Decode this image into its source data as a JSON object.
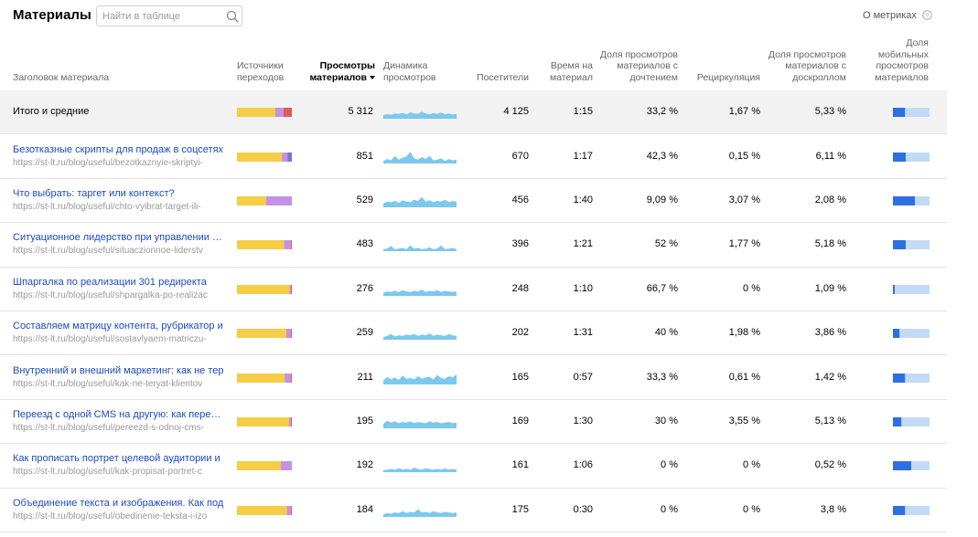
{
  "header": {
    "title": "Материалы",
    "search_placeholder": "Найти в таблице",
    "about": "О метриках"
  },
  "table": {
    "columns": [
      "Заголовок материала",
      "Источники переходов",
      "Просмотры материалов",
      "Динамика просмотров",
      "Посетители",
      "Время на материал",
      "Доля просмотров материалов с дочтением",
      "Рециркуляция",
      "Доля просмотров материалов с доскроллом",
      "Доля мобильных просмотров материалов"
    ],
    "source_colors": [
      "#f5cd46",
      "#c391e6",
      "#e05a5a",
      "#6d78d6"
    ],
    "dynamics_color": "#7cc8ee",
    "mobile_colors": [
      "#2f6fe4",
      "#c3daf7"
    ],
    "rows": [
      {
        "title": "Итого и средние",
        "views": "5 312",
        "visitors": "4 125",
        "time": "1:15",
        "read_share": "33,2 %",
        "recirculation": "1,67 %",
        "scroll_share": "5,33 %",
        "sources": [
          70,
          15,
          15,
          0
        ],
        "mobile_share": 33,
        "dynamics": [
          30,
          35,
          32,
          40,
          38,
          45,
          36,
          50,
          42,
          38,
          55,
          40,
          36,
          44,
          38,
          48,
          35,
          40,
          33,
          38
        ]
      },
      {
        "title": "Безотказные скрипты для продаж в соцсетях",
        "url": "https://st-lt.ru/blog/useful/bezotkaznyie-skriptyi-",
        "views": "851",
        "visitors": "670",
        "time": "1:17",
        "read_share": "42,3 %",
        "recirculation": "0,15 %",
        "scroll_share": "6,11 %",
        "sources": [
          82,
          10,
          0,
          8
        ],
        "mobile_share": 35,
        "dynamics": [
          20,
          35,
          25,
          60,
          30,
          45,
          55,
          90,
          40,
          30,
          50,
          35,
          60,
          25,
          30,
          40,
          20,
          35,
          25,
          30
        ]
      },
      {
        "title": "Что выбрать: таргет или контекст?",
        "url": "https://st-lt.ru/blog/useful/chto-vyibrat-target-ili-",
        "views": "529",
        "visitors": "456",
        "time": "1:40",
        "read_share": "9,09 %",
        "recirculation": "3,07 %",
        "scroll_share": "2,08 %",
        "sources": [
          53,
          47,
          0,
          0
        ],
        "mobile_share": 60,
        "dynamics": [
          30,
          45,
          40,
          50,
          35,
          55,
          45,
          40,
          60,
          50,
          80,
          45,
          55,
          40,
          50,
          45,
          60,
          40,
          50,
          45
        ]
      },
      {
        "title": "Ситуационное лидерство при управлении лю",
        "url": "https://st-lt.ru/blog/useful/situaczionnoe-liderstv",
        "views": "483",
        "visitors": "396",
        "time": "1:21",
        "read_share": "52 %",
        "recirculation": "1,77 %",
        "scroll_share": "5,18 %",
        "sources": [
          86,
          12,
          2,
          0
        ],
        "mobile_share": 35,
        "dynamics": [
          15,
          20,
          40,
          15,
          20,
          25,
          15,
          45,
          20,
          25,
          15,
          20,
          30,
          15,
          20,
          45,
          15,
          20,
          25,
          15
        ]
      },
      {
        "title": "Шпаргалка по реализации 301 редиректа",
        "url": "https://st-lt.ru/blog/useful/shpargalka-po-realizac",
        "views": "276",
        "visitors": "248",
        "time": "1:10",
        "read_share": "66,7 %",
        "recirculation": "0 %",
        "scroll_share": "1,09 %",
        "sources": [
          96,
          2,
          2,
          0
        ],
        "mobile_share": 5,
        "dynamics": [
          25,
          35,
          30,
          40,
          30,
          45,
          35,
          30,
          40,
          35,
          50,
          30,
          40,
          35,
          45,
          30,
          40,
          35,
          30,
          35
        ]
      },
      {
        "title": "Составляем матрицу контента, рубрикатор и",
        "url": "https://st-lt.ru/blog/useful/sostavlyaem-matriczu-",
        "views": "259",
        "visitors": "202",
        "time": "1:31",
        "read_share": "40 %",
        "recirculation": "1,98 %",
        "scroll_share": "3,86 %",
        "sources": [
          90,
          8,
          2,
          0
        ],
        "mobile_share": 18,
        "dynamics": [
          20,
          30,
          45,
          25,
          35,
          30,
          40,
          35,
          45,
          30,
          40,
          35,
          50,
          30,
          40,
          35,
          30,
          45,
          35,
          30
        ]
      },
      {
        "title": "Внутренний и внешний маркетинг: как не тер",
        "url": "https://st-lt.ru/blog/useful/kak-ne-teryat-klientov",
        "views": "211",
        "visitors": "165",
        "time": "0:57",
        "read_share": "33,3 %",
        "recirculation": "0,61 %",
        "scroll_share": "1,42 %",
        "sources": [
          87,
          11,
          2,
          0
        ],
        "mobile_share": 33,
        "dynamics": [
          30,
          60,
          40,
          55,
          35,
          70,
          45,
          50,
          40,
          65,
          45,
          55,
          60,
          40,
          75,
          50,
          45,
          65,
          55,
          80
        ]
      },
      {
        "title": "Переезд с одной CMS на другую: как перенес",
        "url": "https://st-lt.ru/blog/useful/pereezd-s-odnoj-cms-",
        "views": "195",
        "visitors": "169",
        "time": "1:30",
        "read_share": "30 %",
        "recirculation": "3,55 %",
        "scroll_share": "5,13 %",
        "sources": [
          95,
          3,
          2,
          0
        ],
        "mobile_share": 23,
        "dynamics": [
          35,
          60,
          45,
          55,
          40,
          50,
          45,
          55,
          40,
          50,
          45,
          40,
          55,
          45,
          50,
          40,
          45,
          50,
          40,
          45
        ]
      },
      {
        "title": "Как прописать портрет целевой аудитории и",
        "url": "https://st-lt.ru/blog/useful/kak-propisat-portret-c",
        "views": "192",
        "visitors": "161",
        "time": "1:06",
        "read_share": "0 %",
        "recirculation": "0 %",
        "scroll_share": "0,52 %",
        "sources": [
          80,
          20,
          0,
          0
        ],
        "mobile_share": 50,
        "dynamics": [
          15,
          20,
          25,
          20,
          30,
          20,
          25,
          20,
          35,
          25,
          20,
          30,
          25,
          20,
          25,
          20,
          30,
          20,
          25,
          20
        ]
      },
      {
        "title": "Объединение текста и изображения. Как под",
        "url": "https://st-lt.ru/blog/useful/obedinenie-teksta-i-izo",
        "views": "184",
        "visitors": "175",
        "time": "0:30",
        "read_share": "0 %",
        "recirculation": "0 %",
        "scroll_share": "3,8 %",
        "sources": [
          91,
          7,
          2,
          0
        ],
        "mobile_share": 33,
        "dynamics": [
          20,
          30,
          25,
          35,
          30,
          45,
          30,
          40,
          35,
          60,
          35,
          40,
          30,
          45,
          35,
          30,
          40,
          35,
          30,
          35
        ]
      }
    ]
  }
}
